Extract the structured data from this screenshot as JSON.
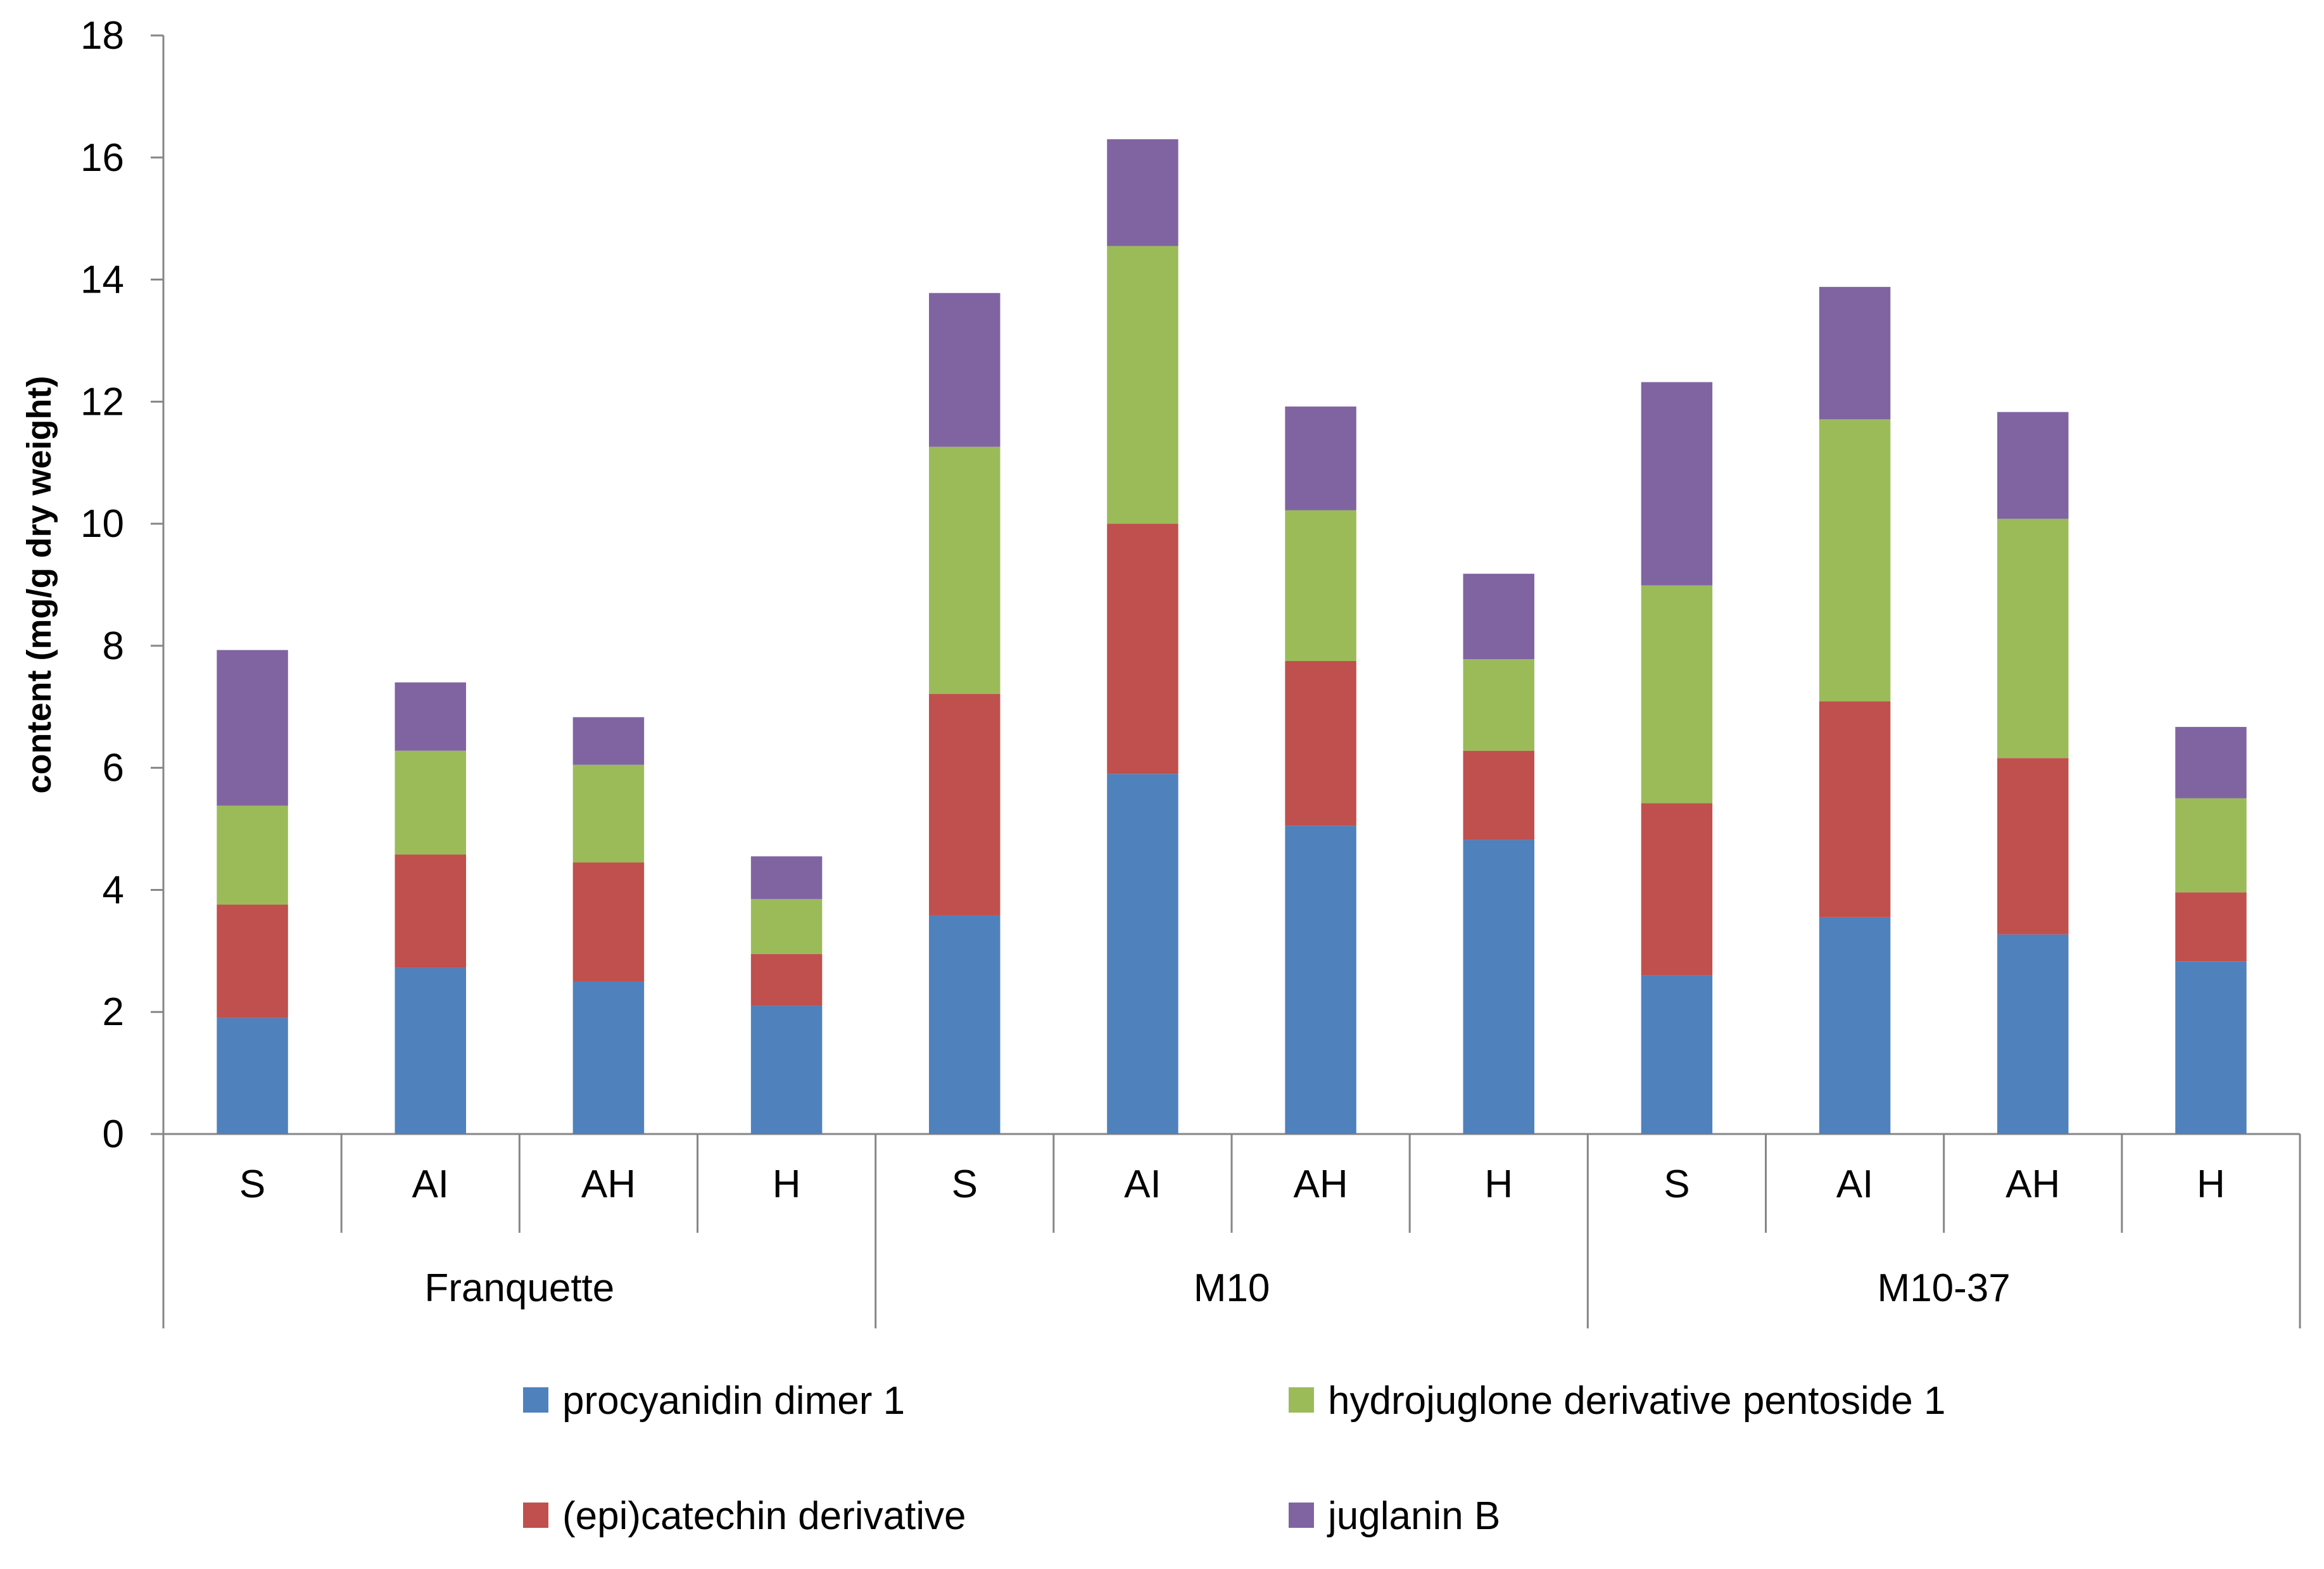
{
  "chart_data": {
    "type": "bar",
    "stacked": true,
    "title": "",
    "xlabel": "",
    "ylabel": "content (mg/g dry weight)",
    "ylim": [
      0,
      18
    ],
    "ytick_step": 2,
    "yticks": [
      "0",
      "2",
      "4",
      "6",
      "8",
      "10",
      "12",
      "14",
      "16",
      "18"
    ],
    "grid": false,
    "legend_position": "bottom",
    "groups": [
      {
        "name": "Franquette",
        "categories": [
          "S",
          "AI",
          "AH",
          "H"
        ]
      },
      {
        "name": "M10",
        "categories": [
          "S",
          "AI",
          "AH",
          "H"
        ]
      },
      {
        "name": "M10-37",
        "categories": [
          "S",
          "AI",
          "AH",
          "H"
        ]
      }
    ],
    "series": [
      {
        "name": "procyanidin dimer 1",
        "color": "#4F81BD",
        "values": [
          1.9,
          2.72,
          2.5,
          2.1,
          3.58,
          5.9,
          5.05,
          4.82,
          2.6,
          3.55,
          3.27,
          2.83
        ]
      },
      {
        "name": "(epi)catechin derivative",
        "color": "#C0504D",
        "values": [
          1.86,
          1.86,
          1.95,
          0.85,
          3.63,
          4.1,
          2.7,
          1.46,
          2.82,
          3.54,
          2.89,
          1.13
        ]
      },
      {
        "name": "hydrojuglone derivative pentoside 1",
        "color": "#9BBB59",
        "values": [
          1.62,
          1.7,
          1.6,
          0.9,
          4.05,
          4.55,
          2.47,
          1.5,
          3.57,
          4.62,
          3.92,
          1.54
        ]
      },
      {
        "name": "juglanin B",
        "color": "#8064A2",
        "values": [
          2.55,
          1.12,
          0.78,
          0.7,
          2.52,
          1.75,
          1.7,
          1.4,
          3.33,
          2.17,
          1.75,
          1.17
        ]
      }
    ],
    "legend_order": [
      "procyanidin dimer 1",
      "hydrojuglone derivative pentoside 1",
      "(epi)catechin derivative",
      "juglanin B"
    ]
  }
}
